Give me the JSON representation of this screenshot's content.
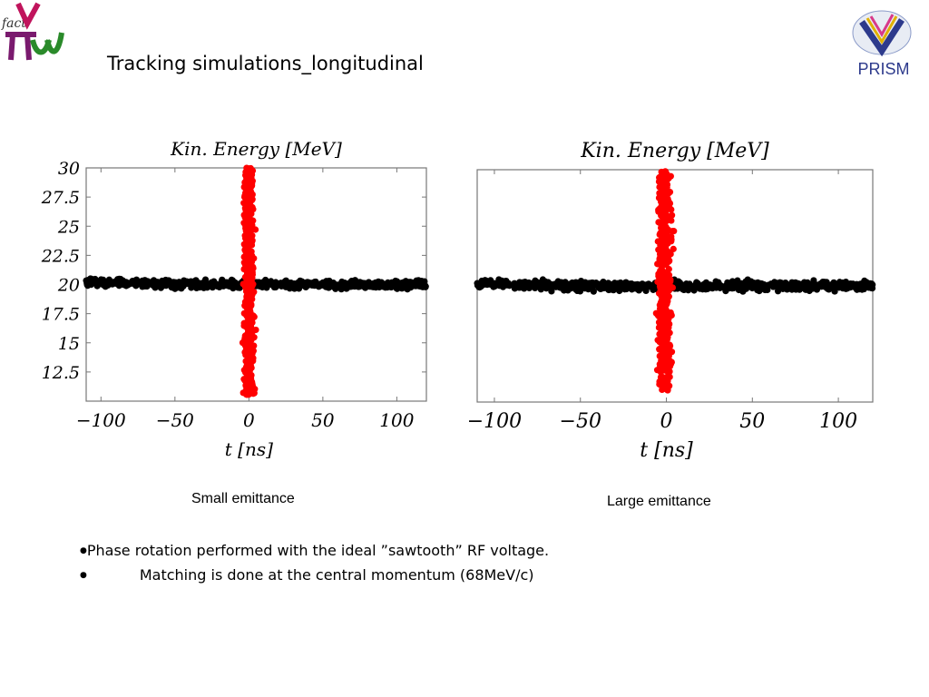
{
  "slide": {
    "title": "Tracking simulations_longitudinal",
    "logo_left_text": "fact",
    "logo_right_text": "PRISM"
  },
  "captions": {
    "left": "Small emittance",
    "right": "Large emittance"
  },
  "bullets": [
    "Phase rotation performed with the ideal ”sawtooth” RF voltage.",
    "Matching is done at the central momentum (68MeV/c)"
  ],
  "colors": {
    "black_beam": "#000000",
    "red_beam": "#ff0000",
    "axis": "#777777"
  },
  "chart_data": [
    {
      "type": "scatter",
      "title": "Kin. Energy [MeV]",
      "xlabel": "t [ns]",
      "ylabel": "",
      "xlim": [
        -110,
        120
      ],
      "ylim": [
        10,
        30
      ],
      "xticks": [
        -100,
        -50,
        0,
        50,
        100
      ],
      "xtick_labels": [
        "−100",
        "−50",
        "0",
        "50",
        "100"
      ],
      "yticks": [
        12.5,
        15,
        17.5,
        20,
        22.5,
        25,
        27.5,
        30
      ],
      "ytick_labels": [
        "12.5",
        "15",
        "17.5",
        "20",
        "22.5",
        "25",
        "27.5",
        "30"
      ],
      "series": [
        {
          "color": "#000000",
          "x_range": [
            -110,
            120
          ],
          "y_center": 20,
          "y_spread": 0.5
        },
        {
          "color": "#ff0000",
          "x_center": 0,
          "x_spread": 3,
          "y_range": [
            10.5,
            30
          ]
        }
      ],
      "caption": "Small emittance"
    },
    {
      "type": "scatter",
      "title": "Kin. Energy [MeV]",
      "xlabel": "t [ns]",
      "ylabel": "",
      "xlim": [
        -110,
        120
      ],
      "ylim": [
        10,
        30
      ],
      "xticks": [
        -100,
        -50,
        0,
        50,
        100
      ],
      "xtick_labels": [
        "−100",
        "−50",
        "0",
        "50",
        "100"
      ],
      "yticks": [],
      "ytick_labels": [],
      "series": [
        {
          "color": "#000000",
          "x_range": [
            -110,
            120
          ],
          "y_center": 20,
          "y_spread": 0.6
        },
        {
          "color": "#ff0000",
          "x_center": -1,
          "x_spread": 3.5,
          "y_range": [
            11,
            30
          ]
        }
      ],
      "caption": "Large emittance"
    }
  ]
}
